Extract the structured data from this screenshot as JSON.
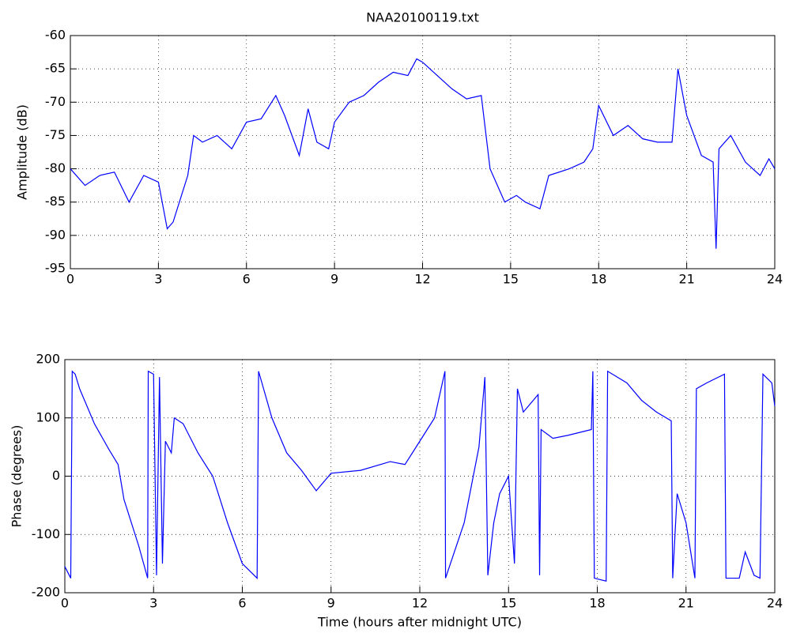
{
  "chart_data": [
    {
      "type": "line",
      "title": "NAA20100119.txt",
      "y_label": "Amplitude (dB)",
      "grid": true,
      "xlim": [
        0,
        24
      ],
      "xticks": [
        0,
        3,
        6,
        9,
        12,
        15,
        18,
        21,
        24
      ],
      "ylim": [
        -95,
        -60
      ],
      "yticks": [
        -95,
        -90,
        -85,
        -80,
        -75,
        -70,
        -65,
        -60
      ],
      "x": [
        0,
        0.5,
        1,
        1.5,
        2,
        2.5,
        3,
        3.3,
        3.5,
        4,
        4.2,
        4.5,
        5,
        5.5,
        6,
        6.5,
        7,
        7.3,
        7.8,
        8.1,
        8.4,
        8.8,
        9,
        9.5,
        10,
        10.5,
        11,
        11.5,
        11.8,
        12,
        12.5,
        13,
        13.5,
        14,
        14.3,
        14.8,
        15.2,
        15.5,
        16,
        16.3,
        17,
        17.5,
        17.8,
        18,
        18.5,
        19,
        19.5,
        20,
        20.5,
        20.7,
        21,
        21.5,
        21.9,
        22,
        22.1,
        22.5,
        23,
        23.5,
        23.8,
        24
      ],
      "series": [
        {
          "color": "#0000ff",
          "values": [
            -80,
            -82.5,
            -81,
            -80.5,
            -85,
            -81,
            -82,
            -89,
            -88,
            -81,
            -75,
            -76,
            -75,
            -77,
            -73,
            -72.5,
            -69,
            -72,
            -78,
            -71,
            -76,
            -77,
            -73,
            -70,
            -69,
            -67,
            -65.5,
            -66,
            -63.5,
            -64,
            -66,
            -68,
            -69.5,
            -69,
            -80,
            -85,
            -84,
            -85,
            -86,
            -81,
            -80,
            -79,
            -77,
            -70.5,
            -75,
            -73.5,
            -75.5,
            -76,
            -76,
            -65,
            -72,
            -78,
            -79,
            -92,
            -77,
            -75,
            -79,
            -81,
            -78.5,
            -80
          ]
        }
      ]
    },
    {
      "type": "line",
      "x_label": "Time (hours after midnight UTC)",
      "y_label": "Phase (degrees)",
      "grid": true,
      "xlim": [
        0,
        24
      ],
      "xticks": [
        0,
        3,
        6,
        9,
        12,
        15,
        18,
        21,
        24
      ],
      "ylim": [
        -200,
        200
      ],
      "yticks": [
        -200,
        -100,
        0,
        100,
        200
      ],
      "x": [
        0,
        0.2,
        0.25,
        0.35,
        0.5,
        1,
        1.5,
        1.8,
        2,
        2.5,
        2.8,
        2.82,
        3,
        3.1,
        3.2,
        3.3,
        3.4,
        3.6,
        3.7,
        4,
        4.5,
        5,
        5.5,
        6,
        6.5,
        6.55,
        7,
        7.5,
        8,
        8.5,
        9,
        10,
        11,
        11.5,
        12,
        12.5,
        12.85,
        12.87,
        13.5,
        14,
        14.2,
        14.3,
        14.5,
        14.7,
        15,
        15.2,
        15.3,
        15.5,
        16,
        16.05,
        16.1,
        16.5,
        17,
        17.8,
        17.85,
        17.9,
        18.3,
        18.35,
        19,
        19.5,
        20,
        20.5,
        20.55,
        20.7,
        21,
        21.3,
        21.35,
        21.7,
        22.3,
        22.35,
        22.8,
        23,
        23.3,
        23.5,
        23.6,
        23.9,
        24
      ],
      "series": [
        {
          "color": "#0000ff",
          "values": [
            -155,
            -175,
            180,
            175,
            150,
            90,
            45,
            20,
            -40,
            -120,
            -175,
            180,
            175,
            -170,
            170,
            -150,
            60,
            40,
            100,
            90,
            40,
            0,
            -80,
            -150,
            -175,
            180,
            100,
            40,
            10,
            -25,
            5,
            10,
            25,
            20,
            60,
            100,
            180,
            -175,
            -80,
            50,
            170,
            -170,
            -80,
            -30,
            0,
            -150,
            150,
            110,
            140,
            -170,
            80,
            65,
            70,
            80,
            180,
            -175,
            -180,
            180,
            160,
            130,
            110,
            95,
            -175,
            -30,
            -80,
            -175,
            150,
            160,
            175,
            -175,
            -175,
            -130,
            -170,
            -175,
            175,
            160,
            120
          ]
        }
      ]
    }
  ]
}
